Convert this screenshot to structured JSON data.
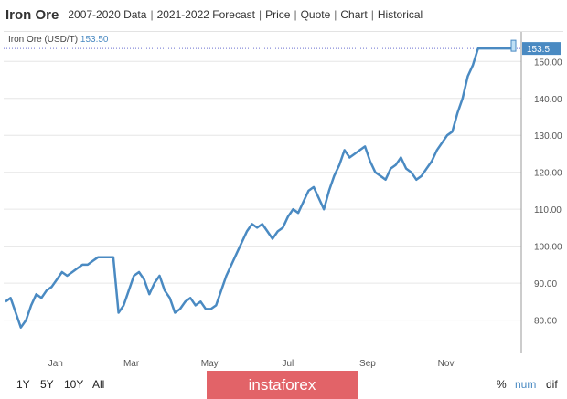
{
  "header": {
    "title": "Iron Ore",
    "links": [
      "2007-2020 Data",
      "2021-2022 Forecast",
      "Price",
      "Quote",
      "Chart",
      "Historical"
    ]
  },
  "legend": {
    "label": "Iron Ore (USD/T)",
    "value": "153.50"
  },
  "footer": {
    "ranges": [
      "1Y",
      "5Y",
      "10Y",
      "All"
    ],
    "modes": [
      "%",
      "num",
      "dif"
    ],
    "watermark": "instaforex"
  },
  "colors": {
    "line": "#4a8ac2",
    "current_badge": "#4a8ac2",
    "legend_value": "#4a8ac2",
    "mode_active": "#4a8ac2",
    "watermark_bg": "#e26368"
  },
  "chart_data": {
    "type": "line",
    "title": "",
    "xlabel": "",
    "ylabel": "",
    "x_ticks": [
      "Jan",
      "Mar",
      "May",
      "Jul",
      "Sep",
      "Nov"
    ],
    "y_ticks": [
      80,
      90,
      100,
      110,
      120,
      130,
      140,
      150
    ],
    "ylim": [
      71,
      156
    ],
    "current_value_label": "153.5",
    "grid": "horizontal",
    "series": [
      {
        "name": "Iron Ore (USD/T)",
        "x": [
          "2020-11-23",
          "2020-11-27",
          "2020-12-01",
          "2020-12-05",
          "2020-12-09",
          "2020-12-13",
          "2020-12-17",
          "2020-12-21",
          "2020-12-25",
          "2020-12-29",
          "2021-01-02",
          "2021-01-06",
          "2021-01-10",
          "2021-01-14",
          "2021-01-18",
          "2021-01-22",
          "2021-01-26",
          "2021-01-30",
          "2021-02-03",
          "2021-02-07",
          "2021-02-11",
          "2021-02-15",
          "2021-02-19",
          "2021-02-23",
          "2021-02-27",
          "2021-03-03",
          "2021-03-07",
          "2021-03-11",
          "2021-03-15",
          "2021-03-19",
          "2021-03-23",
          "2021-03-27",
          "2021-03-31",
          "2021-04-04",
          "2021-04-08",
          "2021-04-12",
          "2021-04-16",
          "2021-04-20",
          "2021-04-24",
          "2021-04-28",
          "2021-05-02",
          "2021-05-06",
          "2021-05-10",
          "2021-05-14",
          "2021-05-18",
          "2021-05-22",
          "2021-05-26",
          "2021-05-30",
          "2021-06-03",
          "2021-06-07",
          "2021-06-11",
          "2021-06-15",
          "2021-06-19",
          "2021-06-23",
          "2021-06-27",
          "2021-07-01",
          "2021-07-05",
          "2021-07-09",
          "2021-07-13",
          "2021-07-17",
          "2021-07-21",
          "2021-07-25",
          "2021-07-29",
          "2021-08-02",
          "2021-08-06",
          "2021-08-10",
          "2021-08-14",
          "2021-08-18",
          "2021-08-22",
          "2021-08-26",
          "2021-08-30",
          "2021-09-03",
          "2021-09-07",
          "2021-09-11",
          "2021-09-15",
          "2021-09-19",
          "2021-09-23",
          "2021-09-27",
          "2021-10-01",
          "2021-10-05",
          "2021-10-09",
          "2021-10-13",
          "2021-10-17",
          "2021-10-21",
          "2021-10-25",
          "2021-10-29",
          "2021-11-02",
          "2021-11-06",
          "2021-11-10",
          "2021-11-14",
          "2021-11-18",
          "2021-11-22",
          "2021-11-26",
          "2021-11-30",
          "2021-12-04",
          "2021-12-08",
          "2021-12-12",
          "2021-12-16",
          "2021-12-20",
          "2021-12-24"
        ],
        "values": [
          85,
          86,
          82,
          78,
          80,
          84,
          87,
          86,
          88,
          89,
          91,
          93,
          92,
          93,
          94,
          95,
          95,
          96,
          97,
          97,
          97,
          97,
          82,
          84,
          88,
          92,
          93,
          91,
          87,
          90,
          92,
          88,
          86,
          82,
          83,
          85,
          86,
          84,
          85,
          83,
          83,
          84,
          88,
          92,
          95,
          98,
          101,
          104,
          106,
          105,
          106,
          104,
          102,
          104,
          105,
          108,
          110,
          109,
          112,
          115,
          116,
          113,
          110,
          115,
          119,
          122,
          126,
          124,
          125,
          126,
          127,
          123,
          120,
          119,
          118,
          121,
          122,
          124,
          121,
          120,
          118,
          119,
          121,
          123,
          126,
          128,
          130,
          131,
          136,
          140,
          146,
          149,
          153.5,
          153.5,
          153.5,
          153.5,
          153.5,
          153.5,
          153.5,
          153.5
        ]
      }
    ]
  }
}
